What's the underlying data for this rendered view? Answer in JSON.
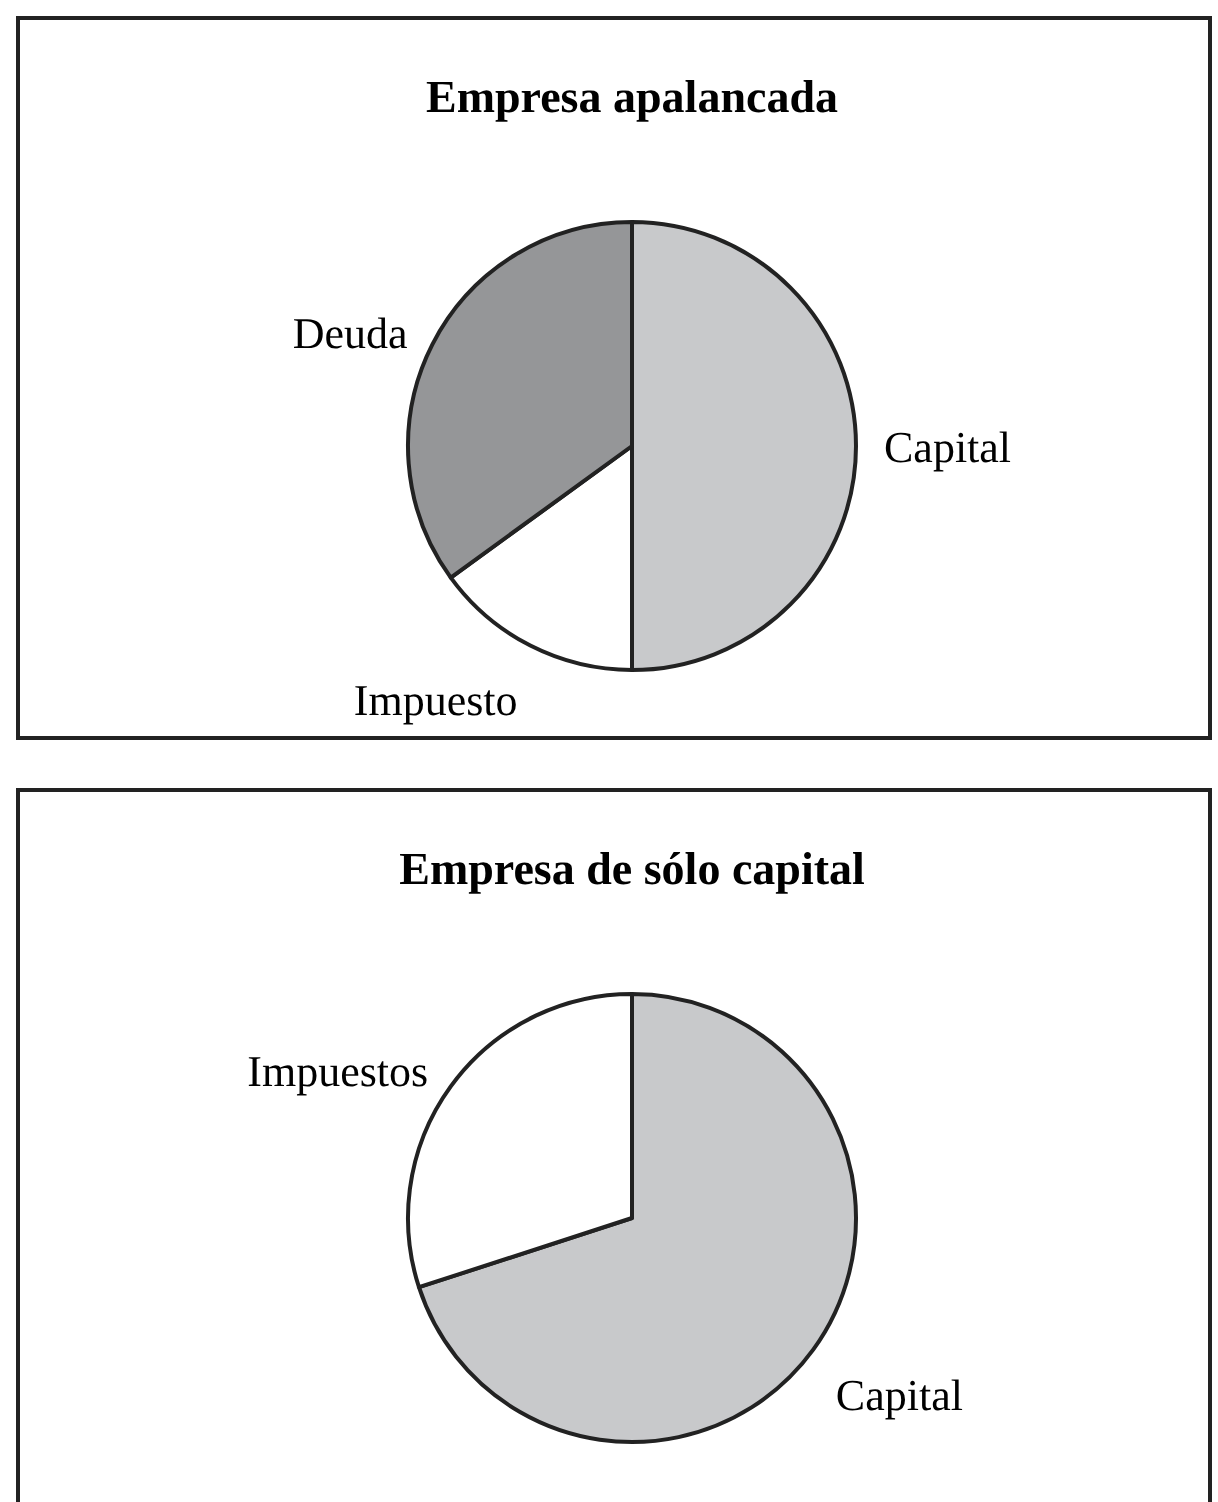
{
  "chart_data": [
    {
      "type": "pie",
      "title": "Empresa apalancada",
      "categories": [
        "Capital",
        "Impuesto",
        "Deuda"
      ],
      "values": [
        50,
        15,
        35
      ],
      "colors": [
        "#c8c9cb",
        "#ffffff",
        "#959698"
      ]
    },
    {
      "type": "pie",
      "title": "Empresa de sólo capital",
      "categories": [
        "Capital",
        "Impuestos"
      ],
      "values": [
        70,
        30
      ],
      "colors": [
        "#c8c9cb",
        "#ffffff"
      ]
    }
  ]
}
